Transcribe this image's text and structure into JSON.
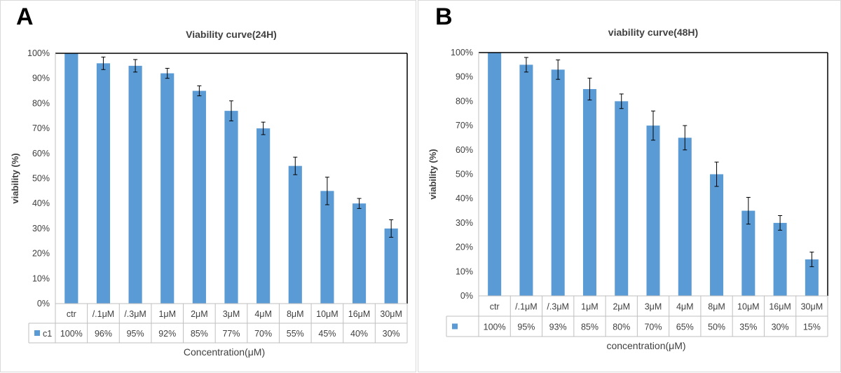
{
  "panels": [
    {
      "letter": "A",
      "chart": {
        "title": "Viability curve(24H)",
        "ylabel": "viability (%)",
        "xlabel": "Concentration(μM)",
        "legend_label": "c1"
      }
    },
    {
      "letter": "B",
      "chart": {
        "title": "viability curve(48H)",
        "ylabel": "viability (%)",
        "xlabel": "concentration(μM)",
        "legend_label": ""
      }
    }
  ],
  "chart_data": [
    {
      "type": "bar",
      "title": "Viability curve(24H)",
      "xlabel": "Concentration(μM)",
      "ylabel": "viability (%)",
      "ylim": [
        0,
        100
      ],
      "yticks": [
        "0%",
        "10%",
        "20%",
        "30%",
        "40%",
        "50%",
        "60%",
        "70%",
        "80%",
        "90%",
        "100%"
      ],
      "categories": [
        "ctr",
        "/.1μM",
        "/.3μM",
        "1μM",
        "2μM",
        "3μM",
        "4μM",
        "8μM",
        "10μM",
        "16μM",
        "30μM"
      ],
      "series": [
        {
          "name": "c1",
          "values": [
            100,
            96,
            95,
            92,
            85,
            77,
            70,
            55,
            45,
            40,
            30
          ],
          "labels": [
            "100%",
            "96%",
            "95%",
            "92%",
            "85%",
            "77%",
            "70%",
            "55%",
            "45%",
            "40%",
            "30%"
          ],
          "errors": [
            0,
            2.5,
            2.5,
            2,
            2,
            4,
            2.5,
            3.5,
            5.5,
            2,
            3.5
          ],
          "color": "#5b9bd5"
        }
      ],
      "data_table": true,
      "grid": false
    },
    {
      "type": "bar",
      "title": "viability curve(48H)",
      "xlabel": "concentration(μM)",
      "ylabel": "viability (%)",
      "ylim": [
        0,
        100
      ],
      "yticks": [
        "0%",
        "10%",
        "20%",
        "30%",
        "40%",
        "50%",
        "60%",
        "70%",
        "80%",
        "90%",
        "100%"
      ],
      "categories": [
        "ctr",
        "/.1μM",
        "/.3μM",
        "1μM",
        "2μM",
        "3μM",
        "4μM",
        "8μM",
        "10μM",
        "16μM",
        "30μM"
      ],
      "series": [
        {
          "values": [
            100,
            95,
            93,
            85,
            80,
            70,
            65,
            50,
            35,
            30,
            15
          ],
          "labels": [
            "100%",
            "95%",
            "93%",
            "85%",
            "80%",
            "70%",
            "65%",
            "50%",
            "35%",
            "30%",
            "15%"
          ],
          "errors": [
            0,
            3,
            4,
            4.5,
            3,
            6,
            5,
            5,
            5.5,
            3,
            3
          ],
          "color": "#5b9bd5"
        }
      ],
      "data_table": true,
      "grid": false
    }
  ]
}
